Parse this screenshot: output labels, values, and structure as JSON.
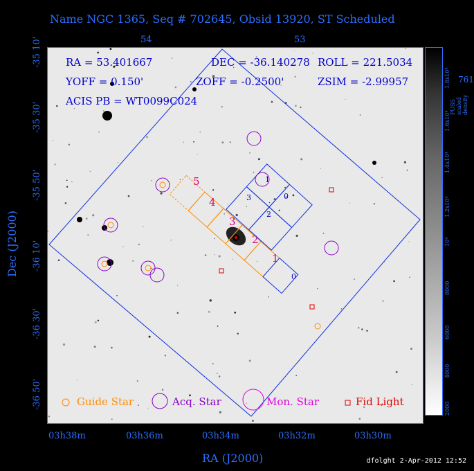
{
  "title": "Name NGC 1365, Seq # 702645, Obsid 13920, ST Scheduled",
  "xlabel": "RA (J2000)",
  "ylabel": "Dec (J2000)",
  "footer": "dfolght  2-Apr-2012 12:52",
  "top_ticks": [
    "54",
    "53"
  ],
  "bottom_ticks": [
    "03h38m",
    "03h36m",
    "03h34m",
    "03h32m",
    "03h30m"
  ],
  "left_ticks": [
    "-35 10'",
    "-35 30'",
    "-35 50'",
    "-36 10'",
    "-36 30'",
    "-36 50'"
  ],
  "info": {
    "ra": "RA = 53.401667",
    "dec": "DEC = -36.140278",
    "roll": "ROLL = 221.5034",
    "yoff": "YOFF =   0.150'",
    "zoff": "ZOFF = -0.2500'",
    "zsim": "ZSIM = -2.99957",
    "acis": "ACIS PB = WT0099C024"
  },
  "chip_labels": [
    "5",
    "4",
    "3",
    "2",
    "1",
    "0"
  ],
  "acis_i_labels": [
    "1",
    "0",
    "3",
    "2"
  ],
  "legend": {
    "guide": "Guide Star",
    "acq": "Acq. Star",
    "mon": "Mon. Star",
    "fid": "Fid Light"
  },
  "colorbar": {
    "label": "PUSS scaled density",
    "ticks": [
      "2000",
      "4000",
      "6000",
      "8000",
      "10⁴",
      "1.2x10⁴",
      "1.4x10⁴",
      "1.6x10⁴",
      "1.8x10⁴"
    ],
    "extra": "761"
  },
  "colors": {
    "axis": "#2a6fff",
    "guide": "#ff8c00",
    "acq": "#8a00c8",
    "mon": "#e000e0",
    "fid": "#e00000",
    "chips_s": "#ff8c00",
    "chip_labels_s": "#e0007a",
    "chips_i": "#0000cc"
  }
}
